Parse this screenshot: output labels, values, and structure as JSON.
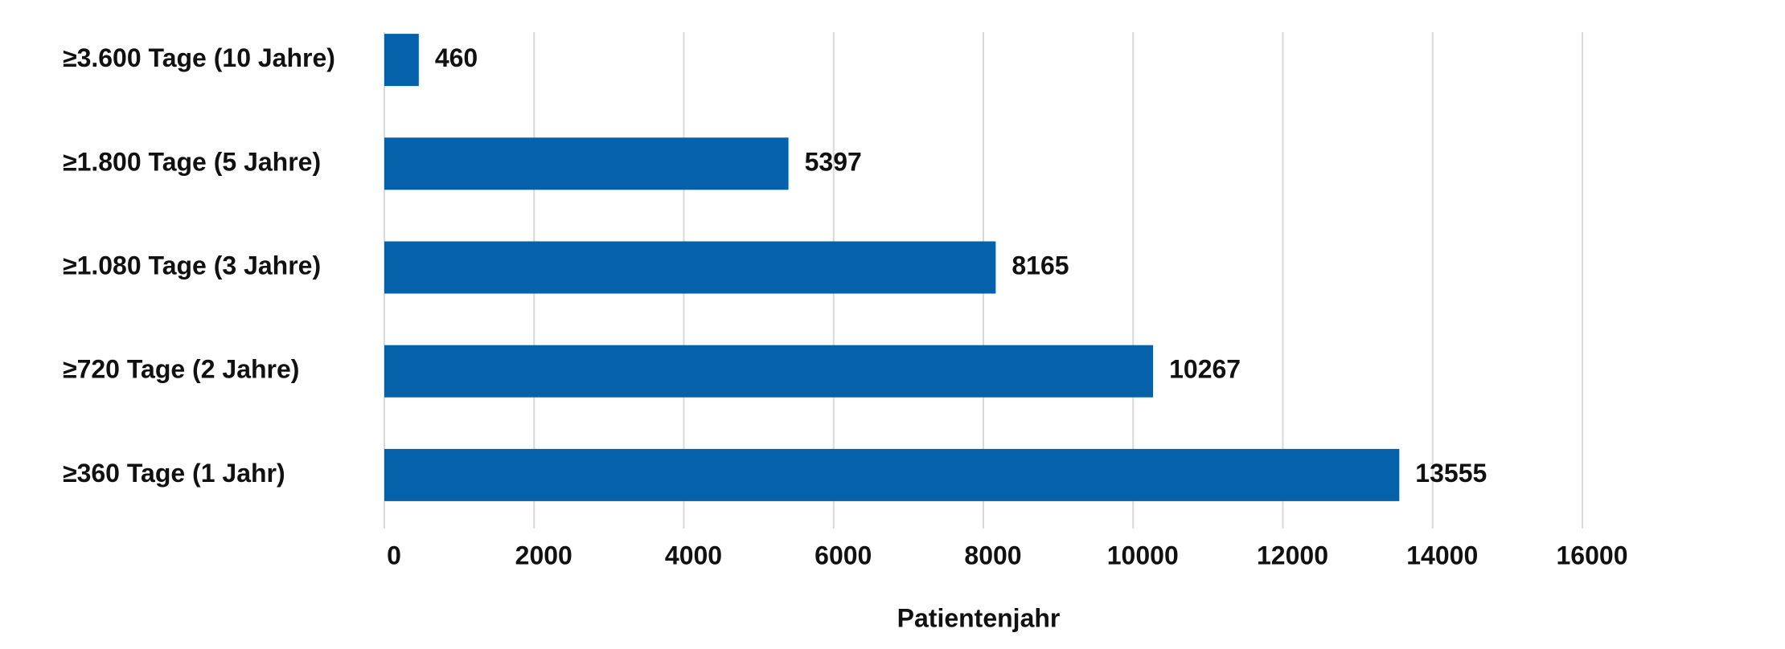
{
  "chart_data": {
    "type": "bar",
    "orientation": "horizontal",
    "categories": [
      "≥3.600 Tage (10 Jahre)",
      "≥1.800 Tage (5 Jahre)",
      "≥1.080 Tage (3 Jahre)",
      "≥720 Tage (2 Jahre)",
      "≥360 Tage (1 Jahr)"
    ],
    "values": [
      460,
      5397,
      8165,
      10267,
      13555
    ],
    "color": "#0561a9",
    "xlabel": "Patientenjahr",
    "xlim": [
      0,
      16000
    ],
    "xticks": [
      0,
      2000,
      4000,
      6000,
      8000,
      10000,
      12000,
      14000,
      16000
    ],
    "grid": true
  }
}
